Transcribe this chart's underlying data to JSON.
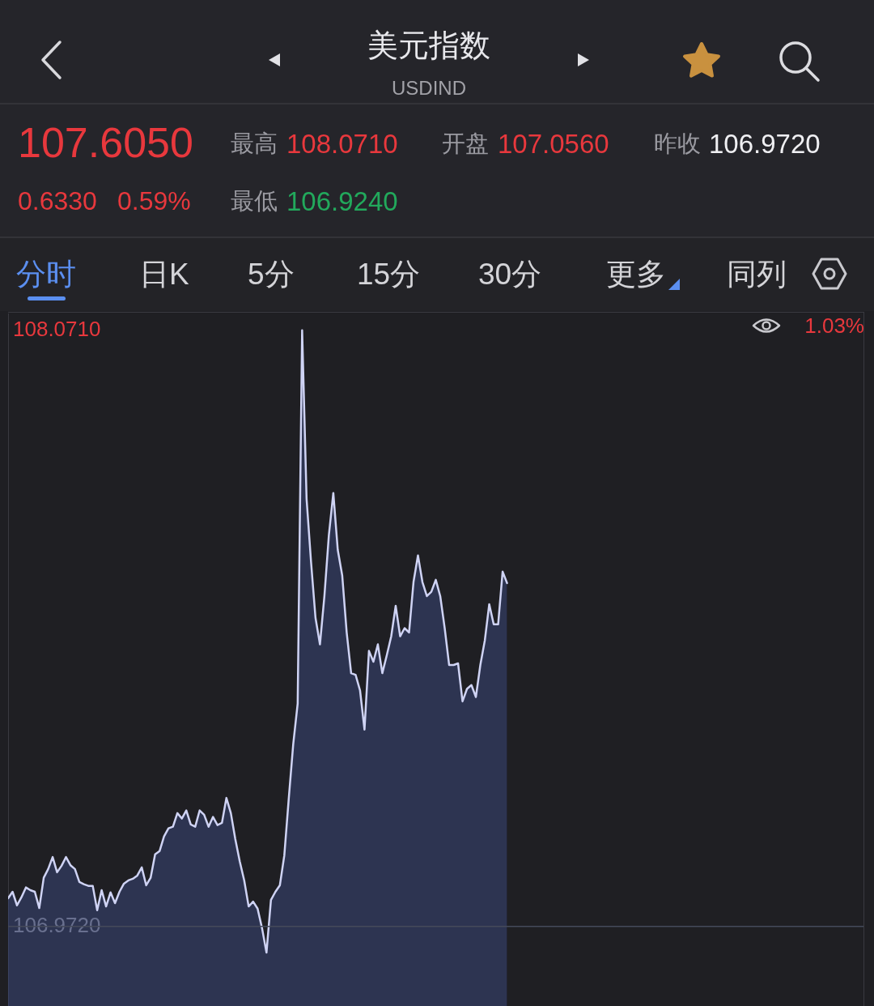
{
  "chart_data": {
    "type": "area",
    "title": "美元指数",
    "subtitle": "USDIND",
    "annotations": [
      "107.6050",
      "0.6330",
      "0.59%",
      "最高",
      "108.0710",
      "最低",
      "106.9240",
      "开盘",
      "107.0560",
      "昨收",
      "106.9720",
      "分时",
      "日K",
      "5分",
      "15分",
      "30分",
      "更多",
      "同列",
      "1.03%"
    ],
    "categories": [
      null,
      null,
      null,
      null,
      null,
      null,
      null,
      null,
      null,
      null,
      null,
      null,
      null,
      null,
      null,
      null,
      null,
      null,
      null,
      null,
      null,
      null,
      null,
      null,
      null,
      null,
      null,
      null,
      null,
      null,
      null,
      null,
      null,
      null,
      null,
      null,
      null,
      null,
      null,
      null,
      null,
      null,
      null,
      null,
      null,
      null,
      null,
      null,
      null,
      null,
      null,
      null,
      null,
      null,
      null,
      null,
      null,
      null,
      null,
      null,
      null,
      null,
      null,
      null,
      null,
      null,
      null,
      null,
      null,
      null,
      null,
      null,
      null,
      null,
      null,
      null,
      null,
      null,
      null,
      null,
      null,
      null,
      null,
      null,
      null,
      null,
      null,
      null,
      null,
      null,
      null,
      null,
      null,
      null,
      null,
      null,
      null,
      null,
      null,
      null,
      null,
      null,
      null,
      null,
      null,
      null,
      null,
      null,
      null,
      null,
      null,
      null,
      null,
      null,
      null,
      null,
      null,
      null,
      null,
      null,
      null,
      null,
      null,
      null,
      null,
      null,
      null,
      null,
      null,
      null,
      null,
      null,
      null,
      null,
      null,
      null,
      null,
      null,
      null,
      null,
      null,
      null,
      null,
      null,
      null,
      null,
      null,
      null,
      null,
      null,
      null,
      null,
      null,
      null,
      null,
      null,
      null,
      null,
      null,
      null,
      null,
      null,
      null,
      null,
      null,
      null,
      null,
      null,
      null,
      null,
      null,
      null,
      null,
      null,
      null,
      null,
      null,
      null,
      null,
      null,
      null,
      null,
      null,
      null,
      null,
      null,
      null,
      null,
      null,
      null,
      null,
      null,
      null
    ],
    "values": [
      107.024,
      107.036,
      107.011,
      107.026,
      107.044,
      107.039,
      107.036,
      107.006,
      107.062,
      107.078,
      107.1,
      107.072,
      107.084,
      107.1,
      107.085,
      107.078,
      107.054,
      107.05,
      107.047,
      107.047,
      107.002,
      107.039,
      107.009,
      107.035,
      107.015,
      107.036,
      107.051,
      107.057,
      107.06,
      107.066,
      107.081,
      107.048,
      107.062,
      107.105,
      107.111,
      107.138,
      107.153,
      107.156,
      107.181,
      107.171,
      107.186,
      107.16,
      107.156,
      107.186,
      107.178,
      107.156,
      107.174,
      107.159,
      107.163,
      107.209,
      107.181,
      107.133,
      107.092,
      107.057,
      107.009,
      107.018,
      107.005,
      106.969,
      106.924,
      107.021,
      107.036,
      107.048,
      107.103,
      107.208,
      107.308,
      107.383,
      108.071,
      107.76,
      107.644,
      107.541,
      107.492,
      107.581,
      107.693,
      107.771,
      107.666,
      107.619,
      107.514,
      107.439,
      107.436,
      107.407,
      107.335,
      107.48,
      107.46,
      107.492,
      107.439,
      107.472,
      107.507,
      107.563,
      107.507,
      107.522,
      107.514,
      107.607,
      107.656,
      107.607,
      107.581,
      107.589,
      107.611,
      107.581,
      107.522,
      107.454,
      107.454,
      107.457,
      107.387,
      107.41,
      107.417,
      107.395,
      107.454,
      107.499,
      107.566,
      107.529,
      107.529,
      107.626,
      107.605,
      null,
      null,
      null,
      null,
      null,
      null,
      null,
      null,
      null,
      null,
      null,
      null,
      null,
      null,
      null,
      null,
      null,
      null,
      null,
      null,
      null,
      null,
      null,
      null,
      null,
      null,
      null,
      null,
      null,
      null,
      null,
      null,
      null,
      null,
      null,
      null,
      null,
      null,
      null,
      null,
      null,
      null,
      null,
      null,
      null,
      null,
      null,
      null,
      null,
      null,
      null,
      null,
      null,
      null,
      null,
      null,
      null,
      null,
      null,
      null,
      null,
      null,
      null,
      null,
      null,
      null,
      null,
      null,
      null,
      null,
      null,
      null,
      null,
      null,
      null,
      null,
      null,
      null,
      null,
      null
    ],
    "color": "#cfd3f4",
    "ylim": [
      106.824,
      108.102
    ],
    "yticks": [
      {
        "value": 108.071,
        "label": "108.0710"
      },
      {
        "value": 106.972,
        "label": "106.9720"
      }
    ],
    "ref_lines": [
      {
        "axis": "y",
        "value": 106.972,
        "color": "#454a5b"
      }
    ]
  }
}
